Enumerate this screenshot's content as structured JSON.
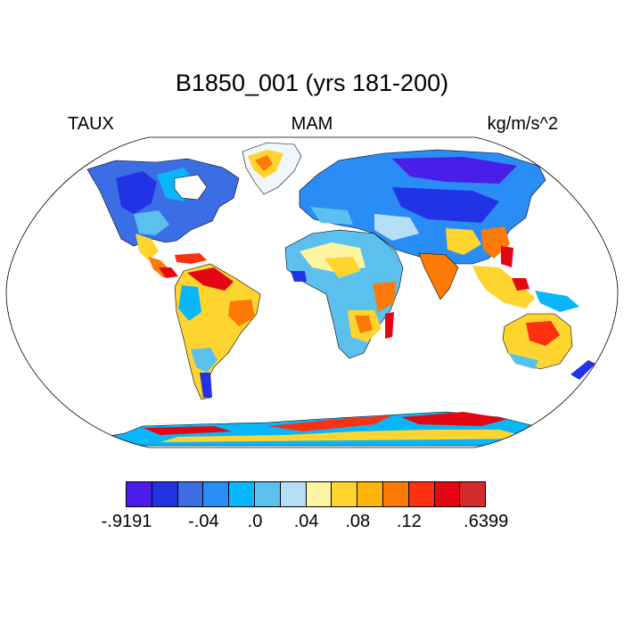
{
  "title": "B1850_001 (yrs 181-200)",
  "left_label": "TAUX",
  "center_label": "MAM",
  "right_label": "kg/m/s^2",
  "colorbar": {
    "colors": [
      "#4a1ee8",
      "#2233e6",
      "#3b6ee5",
      "#2a8cf5",
      "#08b6fb",
      "#5cc0ef",
      "#b5dff5",
      "#fff4a0",
      "#fed52f",
      "#feb30a",
      "#fd7a06",
      "#fd3010",
      "#e50613",
      "#d22d2a"
    ],
    "labels": [
      {
        "text": "-.9191",
        "edge": 0
      },
      {
        "text": "-.04",
        "edge": 3
      },
      {
        "text": ".0",
        "edge": 5
      },
      {
        "text": ".04",
        "edge": 7
      },
      {
        "text": ".08",
        "edge": 9
      },
      {
        "text": ".12",
        "edge": 11
      },
      {
        "text": ".6399",
        "edge": 14
      }
    ]
  }
}
